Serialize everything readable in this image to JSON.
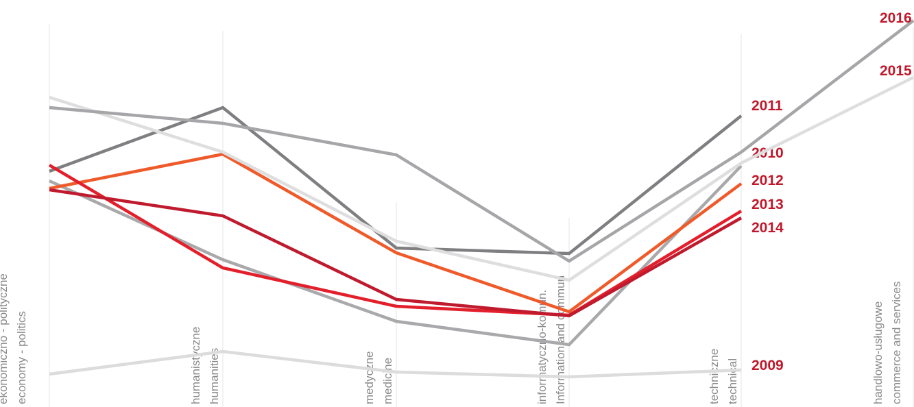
{
  "chart_data": {
    "type": "line",
    "categories": [
      [
        "ekonomiczno - polityczne",
        "economy - politics"
      ],
      [
        "humanistyczne",
        "humanities"
      ],
      [
        "medyczne",
        "medicine"
      ],
      [
        "informatyczno-komun.",
        "Information and commun"
      ],
      [
        "techniczne",
        "technical"
      ],
      [
        "handlowo-usługowe",
        "commerce and services"
      ]
    ],
    "ylim": [
      0,
      594
    ],
    "series": [
      {
        "name": "2009",
        "color": "#dcdcdc",
        "values": [
          48,
          81,
          51,
          44,
          54,
          null
        ]
      },
      {
        "name": "2010",
        "color": "#a9a9ac",
        "values": [
          330,
          215,
          125,
          91,
          352,
          null
        ]
      },
      {
        "name": "2011",
        "color": "#7f7f82",
        "values": [
          344,
          437,
          232,
          224,
          425,
          null
        ]
      },
      {
        "name": "2012",
        "color": "#ef5a2b",
        "values": [
          319,
          369,
          225,
          139,
          326,
          null
        ]
      },
      {
        "name": "2013",
        "color": "#e31f2b",
        "values": [
          353,
          203,
          147,
          134,
          286,
          null
        ]
      },
      {
        "name": "2014",
        "color": "#bf1a2d",
        "values": [
          317,
          279,
          157,
          133,
          276,
          null
        ]
      },
      {
        "name": "2015",
        "color": "#dedede",
        "values": [
          452,
          372,
          242,
          185,
          356,
          481
        ]
      },
      {
        "name": "2016",
        "color": "#a6a6a9",
        "values": [
          437,
          414,
          368,
          213,
          372,
          564
        ]
      }
    ]
  }
}
